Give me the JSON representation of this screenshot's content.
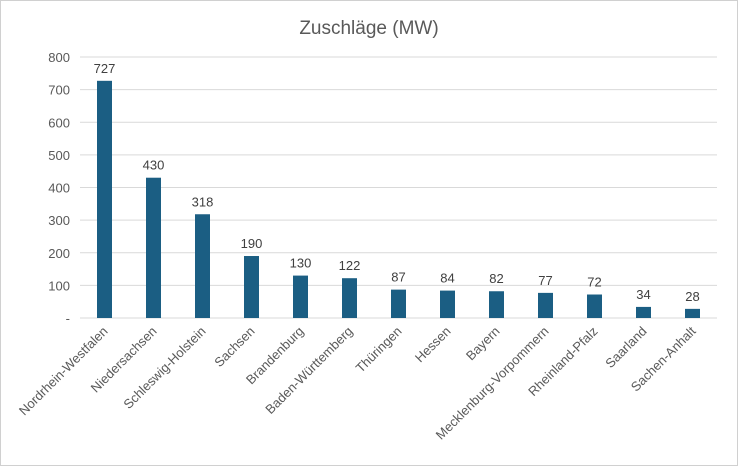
{
  "chart_data": {
    "type": "bar",
    "title": "Zuschläge (MW)",
    "categories": [
      "Nordrhein-Westfalen",
      "Niedersachsen",
      "Schleswig-Holstein",
      "Sachsen",
      "Brandenburg",
      "Baden-Württemberg",
      "Thüringen",
      "Hessen",
      "Bayern",
      "Mecklenburg-Vorpommern",
      "Rheinland-Pfalz",
      "Saarland",
      "Sachen-Anhalt"
    ],
    "values": [
      727,
      430,
      318,
      190,
      130,
      122,
      87,
      84,
      82,
      77,
      72,
      34,
      28
    ],
    "ylim": [
      0,
      800
    ],
    "yticks": [
      0,
      100,
      200,
      300,
      400,
      500,
      600,
      700,
      800
    ],
    "ytick_labels": [
      "-",
      "100",
      "200",
      "300",
      "400",
      "500",
      "600",
      "700",
      "800"
    ],
    "grid": true,
    "data_labels": true,
    "bar_color": "#1b5e83"
  }
}
